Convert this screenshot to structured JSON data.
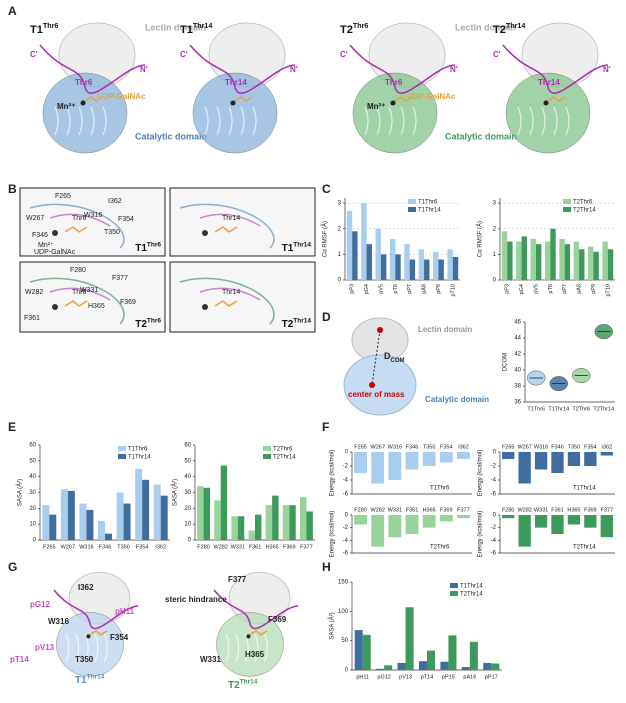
{
  "figure": {
    "panels": [
      "A",
      "B",
      "C",
      "D",
      "E",
      "F",
      "G",
      "H"
    ],
    "a": {
      "titles": [
        {
          "base": "T1",
          "sup": "Thr6"
        },
        {
          "base": "T1",
          "sup": "Thr14"
        },
        {
          "base": "T2",
          "sup": "Thr6"
        },
        {
          "base": "T2",
          "sup": "Thr14"
        }
      ],
      "lectin": "Lectin domain",
      "catalytic": "Catalytic domain",
      "c_term": "C'",
      "n_term": "N'",
      "thr6": "Thr6",
      "thr14": "Thr14",
      "udp": "UDP-GalNAc",
      "mn": "Mn²⁺"
    },
    "b": {
      "t1_residues": [
        "F265",
        "I362",
        "W316",
        "W267",
        "F354",
        "T350",
        "F346"
      ],
      "t2_residues": [
        "F280",
        "F377",
        "W331",
        "W282",
        "H365",
        "F369",
        "F361"
      ],
      "thr6": "Thr6",
      "thr14": "Thr14",
      "mn": "Mn²⁺",
      "udp": "UDP-GalNAc",
      "titles": [
        {
          "base": "T1",
          "sup": "Thr6"
        },
        {
          "base": "T1",
          "sup": "Thr14"
        },
        {
          "base": "T2",
          "sup": "Thr6"
        },
        {
          "base": "T2",
          "sup": "Thr14"
        }
      ]
    },
    "d": {
      "lectin": "Lectin domain",
      "catalytic": "Catalytic domain",
      "dcom": "D",
      "dcom_sub": "COM",
      "com": "center of mass"
    },
    "g": {
      "left_labels": [
        "I362",
        "pG12",
        "pH11",
        "W316",
        "F354",
        "pV13",
        "pT14",
        "T350"
      ],
      "left_title": {
        "base": "T1",
        "sup": "Thr14"
      },
      "right_labels": [
        "F377",
        "steric hindrance",
        "F369",
        "W331",
        "H365"
      ],
      "right_title": {
        "base": "T2",
        "sup": "Thr14"
      }
    }
  },
  "chart_data": [
    {
      "type": "bar",
      "ylabel": "Cα RMSF (Å)",
      "categories": [
        "pP3",
        "pG4",
        "pV5",
        "pT6",
        "pP7",
        "pA8",
        "pP9",
        "pT10"
      ],
      "ylim": [
        0,
        3.2
      ],
      "yticks": [
        0,
        1,
        2,
        3
      ],
      "grid": true,
      "series": [
        {
          "name": "T1Thr6",
          "color": "#a9cdee",
          "values": [
            2.7,
            3.0,
            2.0,
            1.6,
            1.4,
            1.2,
            1.1,
            1.2
          ]
        },
        {
          "name": "T1Thr14",
          "color": "#3f6d9e",
          "values": [
            1.9,
            1.4,
            1.0,
            1.0,
            0.8,
            0.8,
            0.8,
            0.9
          ]
        }
      ]
    },
    {
      "type": "bar",
      "ylabel": "Cα RMSF (Å)",
      "categories": [
        "pP3",
        "pG4",
        "pV5",
        "pT6",
        "pP7",
        "pA8",
        "pP9",
        "pT10"
      ],
      "ylim": [
        0,
        3.2
      ],
      "yticks": [
        0,
        1,
        2,
        3
      ],
      "grid": true,
      "series": [
        {
          "name": "T2Thr6",
          "color": "#98d39a",
          "values": [
            1.9,
            1.5,
            1.6,
            1.5,
            1.6,
            1.5,
            1.3,
            1.5
          ]
        },
        {
          "name": "T2Thr14",
          "color": "#3e9a5c",
          "values": [
            1.5,
            1.7,
            1.4,
            2.0,
            1.4,
            1.2,
            1.1,
            1.2
          ]
        }
      ]
    },
    {
      "type": "violin",
      "ylabel": "DCOM",
      "categories": [
        "T1Thr6",
        "T1Thr14",
        "T2Thr6",
        "T2Thr14"
      ],
      "ylim": [
        36,
        46
      ],
      "yticks": [
        36,
        38,
        40,
        42,
        44,
        46
      ],
      "colors": [
        "#a9cdee",
        "#3f6d9e",
        "#98d39a",
        "#3e9a5c"
      ],
      "values": [
        39.0,
        38.3,
        39.3,
        44.8
      ]
    },
    {
      "type": "bar",
      "ylabel": "SASA (Å²)",
      "categories": [
        "F265",
        "W267",
        "W316",
        "F346",
        "T350",
        "F354",
        "I362"
      ],
      "ylim": [
        0,
        60
      ],
      "yticks": [
        0,
        10,
        20,
        30,
        40,
        50,
        60
      ],
      "series": [
        {
          "name": "T1Thr6",
          "color": "#a9cdee",
          "values": [
            22,
            32,
            23,
            12,
            30,
            45,
            35
          ]
        },
        {
          "name": "T1Thr14",
          "color": "#3f6d9e",
          "values": [
            16,
            31,
            19,
            4,
            23,
            38,
            28
          ]
        }
      ]
    },
    {
      "type": "bar",
      "ylabel": "SASA (Å²)",
      "categories": [
        "F280",
        "W282",
        "W331",
        "F361",
        "H365",
        "F369",
        "F377"
      ],
      "ylim": [
        0,
        60
      ],
      "yticks": [
        0,
        10,
        20,
        30,
        40,
        50,
        60
      ],
      "series": [
        {
          "name": "T2Thr6",
          "color": "#98d39a",
          "values": [
            34,
            25,
            15,
            6,
            22,
            22,
            27
          ]
        },
        {
          "name": "T2Thr14",
          "color": "#3e9a5c",
          "values": [
            33,
            47,
            15,
            16,
            28,
            22,
            18
          ]
        }
      ]
    },
    {
      "type": "bar",
      "ylabel": "Energy (kcal/mol)",
      "categories": [
        "F265",
        "W267",
        "W316",
        "F346",
        "T350",
        "F354",
        "I362"
      ],
      "ylim": [
        -6,
        0
      ],
      "yticks": [
        -6,
        -4,
        -2,
        0
      ],
      "series": [
        {
          "name": "T1Thr6",
          "color": "#a9cdee",
          "values": [
            -3,
            -4.5,
            -4,
            -2.5,
            -2,
            -1.5,
            -1
          ]
        }
      ]
    },
    {
      "type": "bar",
      "ylabel": "Energy (kcal/mol)",
      "categories": [
        "F265",
        "W267",
        "W316",
        "F346",
        "T350",
        "F354",
        "I362"
      ],
      "ylim": [
        -6,
        0
      ],
      "yticks": [
        -6,
        -4,
        -2,
        0
      ],
      "series": [
        {
          "name": "T1Thr14",
          "color": "#3f6d9e",
          "values": [
            -1,
            -4.5,
            -2.5,
            -3,
            -2,
            -2,
            -0.5
          ]
        }
      ]
    },
    {
      "type": "bar",
      "ylabel": "Energy (kcal/mol)",
      "categories": [
        "F280",
        "W282",
        "W331",
        "F361",
        "H365",
        "F369",
        "F377"
      ],
      "ylim": [
        -6,
        0
      ],
      "yticks": [
        -6,
        -4,
        -2,
        0
      ],
      "series": [
        {
          "name": "T2Thr6",
          "color": "#98d39a",
          "values": [
            -1.5,
            -5,
            -3.5,
            -3,
            -2,
            -1,
            -0.5
          ]
        }
      ]
    },
    {
      "type": "bar",
      "ylabel": "Energy (kcal/mol)",
      "categories": [
        "F280",
        "W282",
        "W331",
        "F361",
        "H365",
        "F369",
        "F377"
      ],
      "ylim": [
        -6,
        0
      ],
      "yticks": [
        -6,
        -4,
        -2,
        0
      ],
      "series": [
        {
          "name": "T2Thr14",
          "color": "#3e9a5c",
          "values": [
            -0.5,
            -5,
            -2,
            -3,
            -1.5,
            -2,
            -3.5
          ]
        }
      ]
    },
    {
      "type": "bar",
      "ylabel": "SASA (Å²)",
      "categories": [
        "pH11",
        "pG12",
        "pV13",
        "pT14",
        "pP15",
        "pA16",
        "pP17"
      ],
      "ylim": [
        0,
        150
      ],
      "yticks": [
        0,
        50,
        100,
        150
      ],
      "series": [
        {
          "name": "T1Thr14",
          "color": "#3f6d9e",
          "values": [
            68,
            2,
            12,
            15,
            14,
            5,
            12
          ]
        },
        {
          "name": "T2Thr14",
          "color": "#3e9a5c",
          "values": [
            60,
            8,
            107,
            33,
            59,
            48,
            11
          ]
        }
      ]
    }
  ]
}
